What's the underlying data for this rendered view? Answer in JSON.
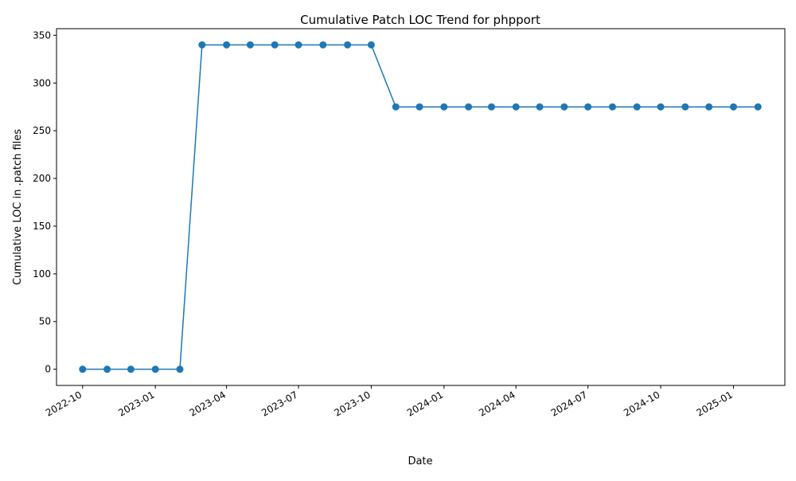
{
  "chart_data": {
    "type": "line",
    "title": "Cumulative Patch LOC Trend for phpport",
    "xlabel": "Date",
    "ylabel": "Cumulative LOC in .patch files",
    "x_ticks": [
      "2022-10",
      "2023-01",
      "2023-04",
      "2023-07",
      "2023-10",
      "2024-01",
      "2024-04",
      "2024-07",
      "2024-10",
      "2025-01"
    ],
    "y_ticks": [
      "0",
      "50",
      "100",
      "150",
      "200",
      "250",
      "300",
      "350"
    ],
    "x": [
      "2022-10-01",
      "2022-11-01",
      "2022-12-01",
      "2023-01-01",
      "2023-02-01",
      "2023-03-01",
      "2023-04-01",
      "2023-05-01",
      "2023-06-01",
      "2023-07-01",
      "2023-08-01",
      "2023-09-01",
      "2023-10-01",
      "2023-11-01",
      "2023-12-01",
      "2024-01-01",
      "2024-02-01",
      "2024-03-01",
      "2024-04-01",
      "2024-05-01",
      "2024-06-01",
      "2024-07-01",
      "2024-08-01",
      "2024-09-01",
      "2024-10-01",
      "2024-11-01",
      "2024-12-01",
      "2025-01-01",
      "2025-02-01"
    ],
    "values": [
      0,
      0,
      0,
      0,
      0,
      340,
      340,
      340,
      340,
      340,
      340,
      340,
      340,
      275,
      275,
      275,
      275,
      275,
      275,
      275,
      275,
      275,
      275,
      275,
      275,
      275,
      275,
      275,
      275
    ],
    "xlim": [
      "2022-08-29",
      "2025-03-07"
    ],
    "ylim": [
      -17,
      357
    ],
    "grid": false,
    "legend": "none",
    "colors": {
      "series": "#1f77b4"
    }
  }
}
